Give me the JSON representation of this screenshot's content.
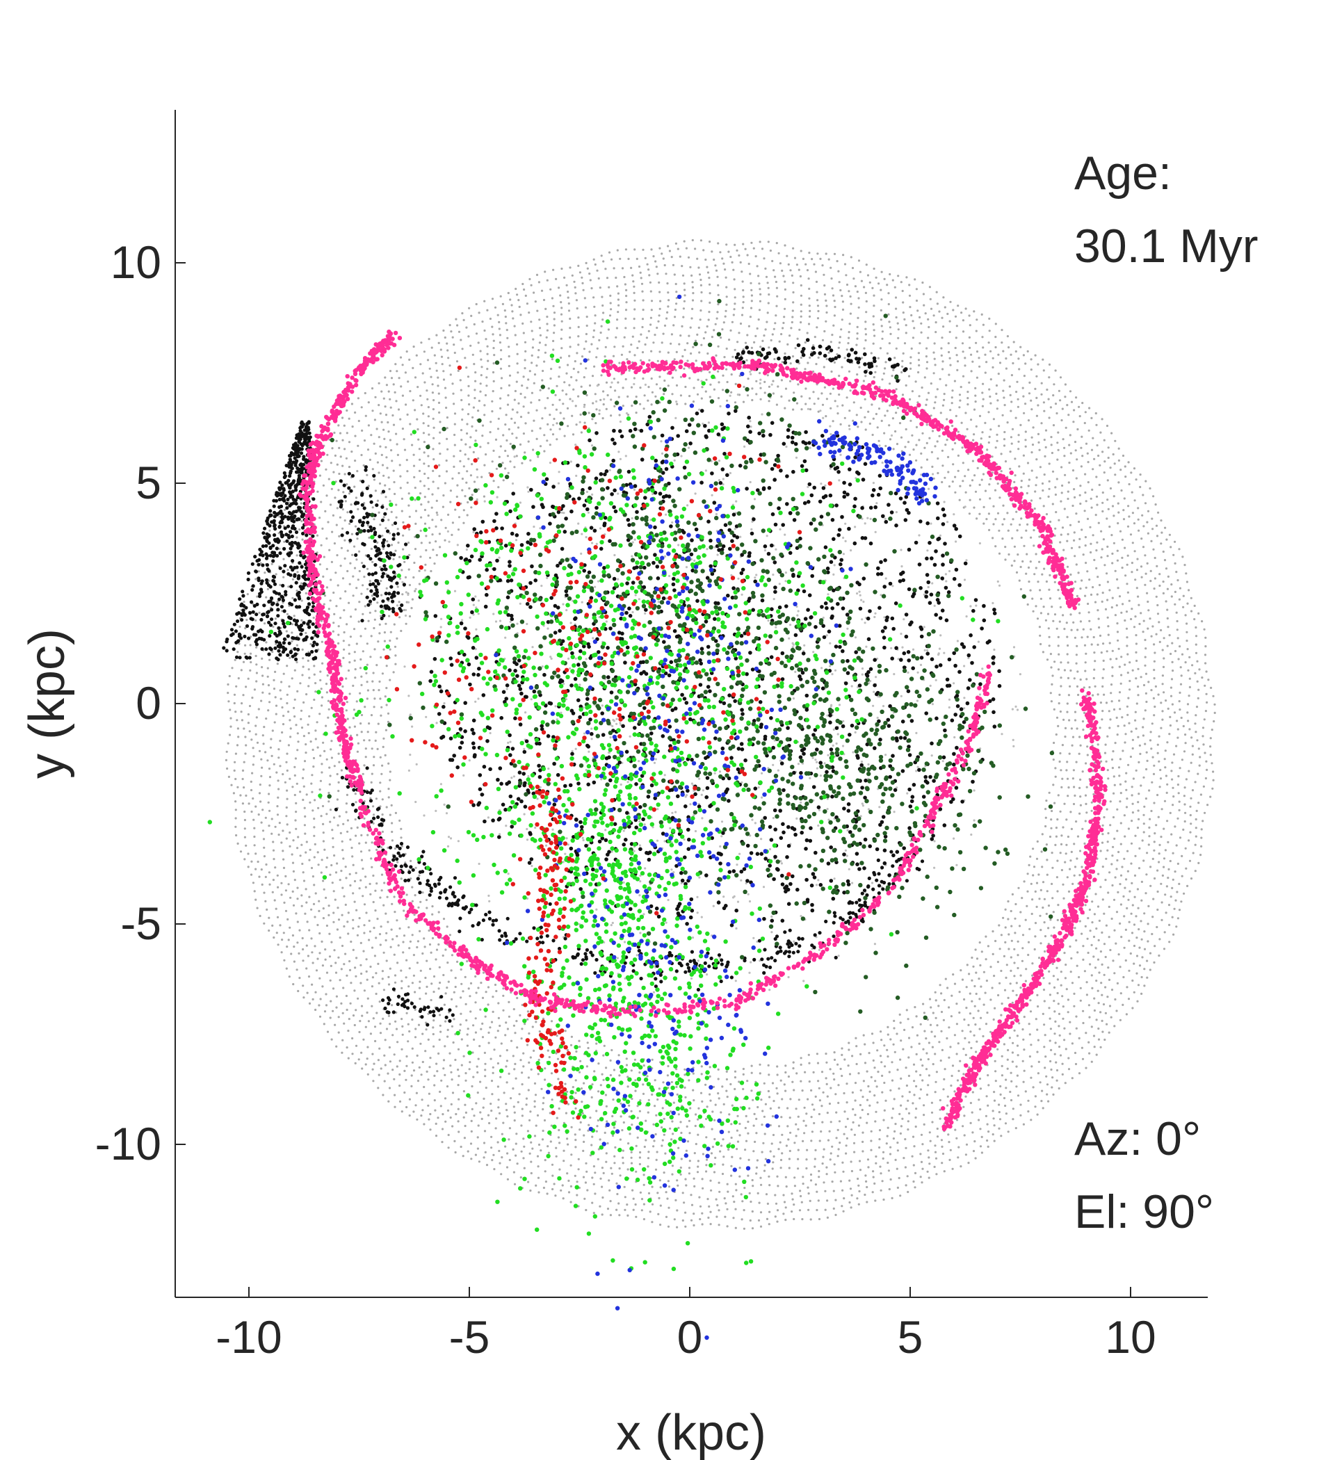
{
  "chart_data": {
    "type": "scatter",
    "title": "",
    "xlabel": "x (kpc)",
    "ylabel": "y (kpc)",
    "xlim": [
      -11.7,
      11.7
    ],
    "ylim": [
      -13.5,
      13.5
    ],
    "x_ticks": [
      -10,
      -5,
      0,
      5,
      10
    ],
    "y_ticks": [
      10,
      5,
      0,
      -5,
      -10
    ],
    "x_tick_labels": [
      "-10",
      "-5",
      "0",
      "5",
      "10"
    ],
    "y_tick_labels": [
      "10",
      "5",
      "0",
      "-5",
      "-10"
    ],
    "grid": false,
    "box": "left and bottom axes only",
    "annotations": {
      "age_label": "Age:",
      "age_value": "30.1 Myr",
      "azimuth": "Az: 0°",
      "elevation": "El: 90°"
    },
    "series_colors": {
      "disk_grey": "#a8a8a8",
      "ring_magenta": "#ff2d95",
      "black": "#111111",
      "dark_green": "#245c24",
      "green": "#22dd22",
      "red": "#e41a1a",
      "blue": "#2233dd"
    },
    "series": [
      {
        "name": "",
        "color": "#a8a8a8",
        "description_of_shape": "dense grey particle disk, spiral-row texture",
        "center": [
          0.7,
          -0.7
        ],
        "radius_range": [
          7.6,
          11.2
        ]
      },
      {
        "name": "",
        "color": "#ff2d95",
        "shape": "magenta spiral-arm ring",
        "points": [
          [
            -6.7,
            8.4
          ],
          [
            -7.6,
            7.4
          ],
          [
            -8.4,
            6.0
          ],
          [
            -8.7,
            4.8
          ],
          [
            -8.5,
            2.6
          ],
          [
            -8.1,
            1.0
          ],
          [
            -7.9,
            -0.5
          ],
          [
            -7.5,
            -2.0
          ]
        ]
      },
      {
        "name": "",
        "color": "#ff2d95",
        "shape": "magenta ring around the inner disk",
        "points": [
          [
            -2.0,
            7.6
          ],
          [
            1.5,
            7.7
          ],
          [
            4.5,
            7.0
          ],
          [
            6.5,
            5.8
          ],
          [
            8.0,
            4.0
          ],
          [
            8.7,
            2.2
          ]
        ]
      },
      {
        "name": "",
        "color": "#ff2d95",
        "shape": "magenta outer arm, lower right",
        "points": [
          [
            9.0,
            0.2
          ],
          [
            9.3,
            -2.0
          ],
          [
            9.0,
            -4.0
          ],
          [
            8.5,
            -5.2
          ],
          [
            7.5,
            -6.8
          ],
          [
            6.5,
            -8.2
          ],
          [
            5.8,
            -9.6
          ]
        ]
      },
      {
        "name": "",
        "color": "#ff2d95",
        "shape": "magenta lower arc",
        "points": [
          [
            -7.5,
            -2.2
          ],
          [
            -6.5,
            -4.5
          ],
          [
            -5.0,
            -5.8
          ],
          [
            -3.5,
            -6.7
          ],
          [
            -1.5,
            -7.0
          ],
          [
            1.0,
            -6.8
          ],
          [
            3.0,
            -5.6
          ],
          [
            4.6,
            -4.2
          ],
          [
            5.5,
            -2.5
          ],
          [
            6.3,
            -1.0
          ],
          [
            6.8,
            0.8
          ]
        ]
      },
      {
        "name": "",
        "color": "#111111",
        "shape": "black tidal fan on the left edge",
        "points": [
          [
            -10.6,
            2.5
          ],
          [
            -9.8,
            3.0
          ],
          [
            -9.0,
            4.5
          ],
          [
            -8.7,
            6.3
          ],
          [
            -8.4,
            3.5
          ],
          [
            -8.9,
            1.2
          ],
          [
            -10.0,
            2.0
          ]
        ]
      }
    ]
  }
}
